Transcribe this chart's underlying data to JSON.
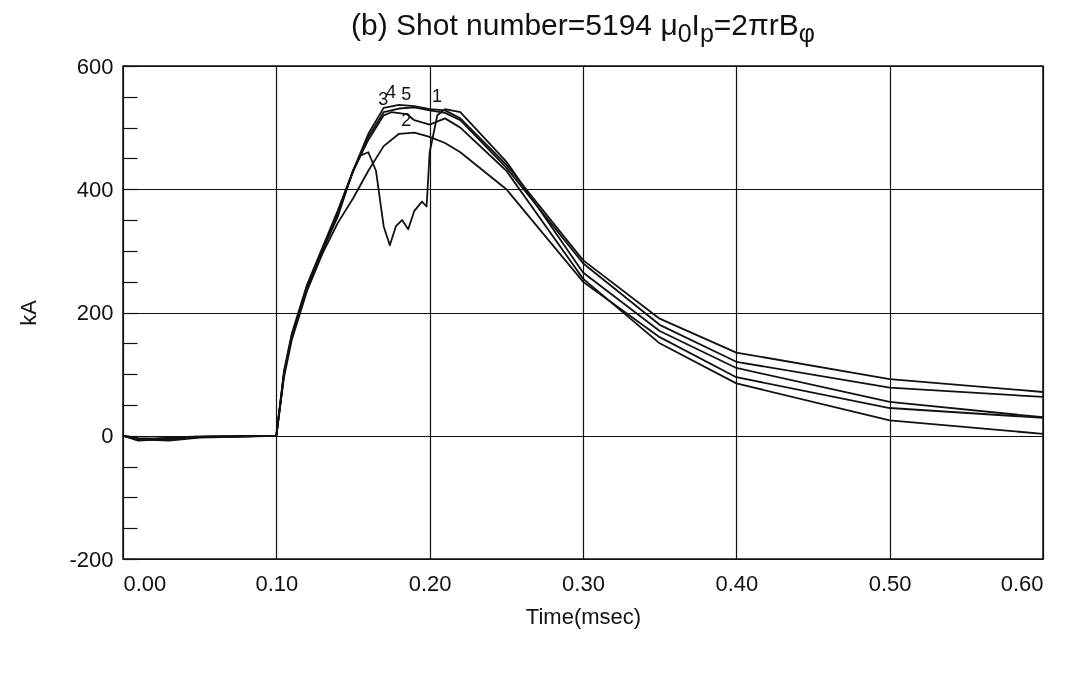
{
  "chart_data": {
    "type": "line",
    "title": "(b) Shot number=5194  μ$_{0}$I$_{p}$=2πrB$_{φ}$",
    "xlabel": "Time(msec)",
    "ylabel": "kA",
    "xlim": [
      0,
      0.6
    ],
    "xticks": [
      {
        "value": 0,
        "label": "0.00"
      },
      {
        "value": 0.1,
        "label": "0.10"
      },
      {
        "value": 0.2,
        "label": "0.20"
      },
      {
        "value": 0.3,
        "label": "0.30"
      },
      {
        "value": 0.4,
        "label": "0.40"
      },
      {
        "value": 0.5,
        "label": "0.50"
      },
      {
        "value": 0.6,
        "label": "0.60"
      }
    ],
    "ylim": [
      -200,
      600
    ],
    "yticks": [
      -200,
      {
        "value": -150,
        "label": null
      },
      {
        "value": -100,
        "label": null
      },
      {
        "value": -50,
        "label": null
      },
      0,
      {
        "value": 50,
        "label": null
      },
      {
        "value": 100,
        "label": null
      },
      {
        "value": 150,
        "label": null
      },
      200,
      {
        "value": 250,
        "label": null
      },
      {
        "value": 300,
        "label": null
      },
      {
        "value": 350,
        "label": null
      },
      400,
      {
        "value": 450,
        "label": null
      },
      {
        "value": 500,
        "label": null
      },
      {
        "value": 550,
        "label": null
      },
      600
    ],
    "grid": true,
    "legend": false,
    "line_style": "solid",
    "series": [
      {
        "name": "1",
        "color": "#111111",
        "x": [
          0,
          0.01,
          0.03,
          0.05,
          0.1,
          0.105,
          0.11,
          0.12,
          0.13,
          0.14,
          0.15,
          0.155,
          0.16,
          0.165,
          0.17,
          0.174,
          0.178,
          0.182,
          0.186,
          0.19,
          0.195,
          0.198,
          0.2,
          0.205,
          0.21,
          0.22,
          0.25,
          0.3,
          0.35,
          0.4,
          0.5,
          0.6
        ],
        "values": [
          0,
          -8,
          -5,
          -2,
          0,
          100,
          160,
          240,
          300,
          355,
          430,
          455,
          460,
          430,
          340,
          309,
          340,
          350,
          335,
          365,
          380,
          372,
          460,
          520,
          530,
          525,
          445,
          265,
          170,
          110,
          55,
          30
        ]
      },
      {
        "name": "2",
        "color": "#111111",
        "x": [
          0,
          0.01,
          0.03,
          0.05,
          0.1,
          0.105,
          0.11,
          0.12,
          0.13,
          0.14,
          0.15,
          0.16,
          0.17,
          0.18,
          0.19,
          0.2,
          0.21,
          0.22,
          0.25,
          0.3,
          0.35,
          0.4,
          0.5,
          0.6
        ],
        "values": [
          0,
          -6,
          -8,
          -3,
          0,
          95,
          155,
          235,
          295,
          345,
          385,
          430,
          470,
          490,
          492,
          485,
          475,
          460,
          400,
          250,
          160,
          95,
          45,
          29
        ]
      },
      {
        "name": "3",
        "color": "#111111",
        "x": [
          0,
          0.01,
          0.03,
          0.05,
          0.1,
          0.105,
          0.11,
          0.12,
          0.13,
          0.14,
          0.15,
          0.16,
          0.17,
          0.175,
          0.185,
          0.19,
          0.2,
          0.21,
          0.22,
          0.25,
          0.3,
          0.35,
          0.4,
          0.5,
          0.6
        ],
        "values": [
          0,
          -4,
          -6,
          -2,
          0,
          100,
          160,
          240,
          300,
          360,
          430,
          480,
          520,
          525,
          522,
          512,
          505,
          515,
          500,
          430,
          255,
          150,
          85,
          25,
          3
        ]
      },
      {
        "name": "4",
        "color": "#111111",
        "x": [
          0,
          0.01,
          0.03,
          0.05,
          0.1,
          0.105,
          0.11,
          0.12,
          0.13,
          0.14,
          0.15,
          0.16,
          0.17,
          0.18,
          0.19,
          0.2,
          0.21,
          0.22,
          0.25,
          0.3,
          0.35,
          0.4,
          0.5,
          0.6
        ],
        "values": [
          0,
          -5,
          -4,
          -2,
          0,
          105,
          165,
          245,
          305,
          365,
          430,
          490,
          532,
          537,
          535,
          530,
          528,
          515,
          440,
          285,
          190,
          135,
          92,
          71
        ]
      },
      {
        "name": "5",
        "color": "#111111",
        "x": [
          0,
          0.01,
          0.03,
          0.05,
          0.1,
          0.105,
          0.11,
          0.12,
          0.13,
          0.14,
          0.15,
          0.16,
          0.17,
          0.18,
          0.19,
          0.2,
          0.21,
          0.22,
          0.25,
          0.3,
          0.35,
          0.4,
          0.5,
          0.6
        ],
        "values": [
          0,
          -7,
          -3,
          -1,
          0,
          102,
          162,
          242,
          302,
          362,
          428,
          485,
          525,
          531,
          533,
          528,
          524,
          512,
          435,
          280,
          180,
          120,
          78,
          63
        ]
      }
    ]
  }
}
